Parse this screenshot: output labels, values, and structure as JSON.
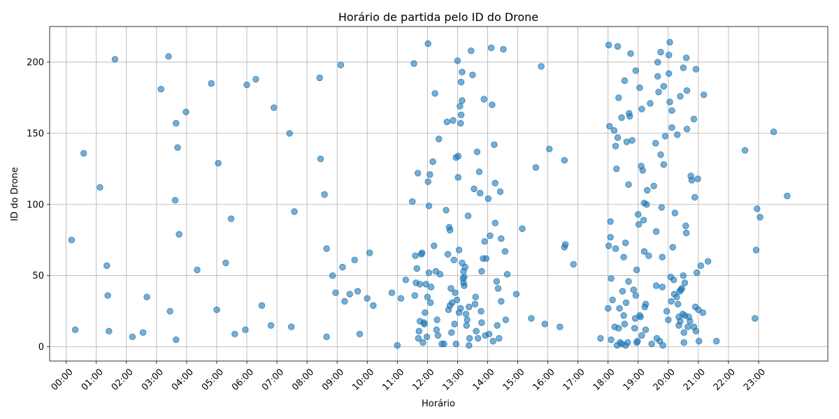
{
  "chart_data": {
    "type": "scatter",
    "title": "Horário de partida pelo ID do Drone",
    "xlabel": "Horário",
    "ylabel": "ID do Drone",
    "xlim": [
      -0.55,
      25.3
    ],
    "ylim": [
      -10,
      225
    ],
    "x_ticks": [
      0,
      1,
      2,
      3,
      4,
      5,
      6,
      7,
      8,
      9,
      10,
      11,
      12,
      13,
      14,
      15,
      16,
      17,
      18,
      19,
      20,
      21,
      22,
      23
    ],
    "x_tick_labels": [
      "00:00",
      "01:00",
      "02:00",
      "03:00",
      "04:00",
      "05:00",
      "06:00",
      "07:00",
      "08:00",
      "09:00",
      "10:00",
      "11:00",
      "12:00",
      "13:00",
      "14:00",
      "15:00",
      "16:00",
      "17:00",
      "18:00",
      "19:00",
      "20:00",
      "21:00",
      "22:00",
      "23:00"
    ],
    "y_ticks": [
      0,
      50,
      100,
      150,
      200
    ],
    "y_tick_labels": [
      "0",
      "50",
      "100",
      "150",
      "200"
    ],
    "grid": true,
    "marker_color": "#1f77b4",
    "marker_opacity": 0.6,
    "points": [
      [
        0.18,
        75
      ],
      [
        0.3,
        12
      ],
      [
        0.58,
        136
      ],
      [
        1.12,
        112
      ],
      [
        1.35,
        57
      ],
      [
        1.38,
        36
      ],
      [
        1.42,
        11
      ],
      [
        1.62,
        202
      ],
      [
        2.2,
        7
      ],
      [
        2.55,
        10
      ],
      [
        2.68,
        35
      ],
      [
        3.15,
        181
      ],
      [
        3.4,
        204
      ],
      [
        3.45,
        25
      ],
      [
        3.62,
        103
      ],
      [
        3.65,
        157
      ],
      [
        3.65,
        5
      ],
      [
        3.7,
        140
      ],
      [
        3.75,
        79
      ],
      [
        3.98,
        165
      ],
      [
        4.35,
        54
      ],
      [
        4.82,
        185
      ],
      [
        5.0,
        26
      ],
      [
        5.05,
        129
      ],
      [
        5.3,
        59
      ],
      [
        5.48,
        90
      ],
      [
        5.6,
        9
      ],
      [
        5.95,
        12
      ],
      [
        6.0,
        184
      ],
      [
        6.3,
        188
      ],
      [
        6.5,
        29
      ],
      [
        6.8,
        15
      ],
      [
        6.9,
        168
      ],
      [
        7.42,
        150
      ],
      [
        7.48,
        14
      ],
      [
        7.58,
        95
      ],
      [
        8.42,
        189
      ],
      [
        8.45,
        132
      ],
      [
        8.58,
        107
      ],
      [
        8.65,
        69
      ],
      [
        8.65,
        7
      ],
      [
        8.85,
        50
      ],
      [
        8.95,
        38
      ],
      [
        9.12,
        198
      ],
      [
        9.18,
        56
      ],
      [
        9.25,
        32
      ],
      [
        9.42,
        37
      ],
      [
        9.58,
        61
      ],
      [
        9.68,
        39
      ],
      [
        9.75,
        9
      ],
      [
        10.0,
        34
      ],
      [
        10.08,
        66
      ],
      [
        10.2,
        29
      ],
      [
        10.82,
        38
      ],
      [
        11.0,
        1
      ],
      [
        11.12,
        34
      ],
      [
        11.28,
        47
      ],
      [
        11.5,
        102
      ],
      [
        11.55,
        199
      ],
      [
        11.58,
        36
      ],
      [
        11.6,
        64
      ],
      [
        11.62,
        45
      ],
      [
        11.65,
        55
      ],
      [
        11.68,
        122
      ],
      [
        11.7,
        6
      ],
      [
        11.72,
        11
      ],
      [
        11.75,
        44
      ],
      [
        11.75,
        18
      ],
      [
        11.8,
        65
      ],
      [
        11.82,
        66
      ],
      [
        11.85,
        3
      ],
      [
        11.88,
        17
      ],
      [
        11.9,
        16
      ],
      [
        11.92,
        24
      ],
      [
        11.95,
        44
      ],
      [
        11.98,
        7
      ],
      [
        12.0,
        35
      ],
      [
        12.02,
        213
      ],
      [
        12.02,
        116
      ],
      [
        12.05,
        52
      ],
      [
        12.05,
        99
      ],
      [
        12.08,
        121
      ],
      [
        12.1,
        31
      ],
      [
        12.12,
        42
      ],
      [
        12.18,
        130
      ],
      [
        12.22,
        71
      ],
      [
        12.25,
        178
      ],
      [
        12.28,
        53
      ],
      [
        12.3,
        12
      ],
      [
        12.32,
        19
      ],
      [
        12.35,
        8
      ],
      [
        12.38,
        146
      ],
      [
        12.42,
        51
      ],
      [
        12.48,
        2
      ],
      [
        12.55,
        2
      ],
      [
        12.62,
        96
      ],
      [
        12.65,
        158
      ],
      [
        12.68,
        65
      ],
      [
        12.7,
        26
      ],
      [
        12.72,
        84
      ],
      [
        12.75,
        82
      ],
      [
        12.75,
        29
      ],
      [
        12.78,
        41
      ],
      [
        12.8,
        10
      ],
      [
        12.82,
        31
      ],
      [
        12.85,
        159
      ],
      [
        12.88,
        61
      ],
      [
        12.9,
        16
      ],
      [
        12.92,
        38
      ],
      [
        12.95,
        2
      ],
      [
        12.95,
        133
      ],
      [
        12.98,
        33
      ],
      [
        13.0,
        201
      ],
      [
        13.02,
        119
      ],
      [
        13.02,
        134
      ],
      [
        13.05,
        68
      ],
      [
        13.05,
        24
      ],
      [
        13.08,
        169
      ],
      [
        13.1,
        157
      ],
      [
        13.1,
        27
      ],
      [
        13.12,
        186
      ],
      [
        13.12,
        163
      ],
      [
        13.15,
        193
      ],
      [
        13.15,
        173
      ],
      [
        13.15,
        59
      ],
      [
        13.18,
        48
      ],
      [
        13.2,
        53
      ],
      [
        13.2,
        45
      ],
      [
        13.22,
        49
      ],
      [
        13.22,
        43
      ],
      [
        13.25,
        56
      ],
      [
        13.28,
        23
      ],
      [
        13.3,
        15
      ],
      [
        13.32,
        19
      ],
      [
        13.35,
        92
      ],
      [
        13.38,
        1
      ],
      [
        13.38,
        28
      ],
      [
        13.4,
        6
      ],
      [
        13.45,
        208
      ],
      [
        13.5,
        191
      ],
      [
        13.55,
        111
      ],
      [
        13.58,
        30
      ],
      [
        13.6,
        35
      ],
      [
        13.62,
        11
      ],
      [
        13.65,
        137
      ],
      [
        13.68,
        6
      ],
      [
        13.72,
        123
      ],
      [
        13.75,
        108
      ],
      [
        13.78,
        25
      ],
      [
        13.8,
        53
      ],
      [
        13.8,
        17
      ],
      [
        13.85,
        62
      ],
      [
        13.88,
        174
      ],
      [
        13.9,
        74
      ],
      [
        13.92,
        8
      ],
      [
        13.95,
        62
      ],
      [
        14.02,
        104
      ],
      [
        14.05,
        9
      ],
      [
        14.08,
        78
      ],
      [
        14.12,
        210
      ],
      [
        14.15,
        170
      ],
      [
        14.18,
        4
      ],
      [
        14.22,
        142
      ],
      [
        14.25,
        115
      ],
      [
        14.25,
        87
      ],
      [
        14.3,
        46
      ],
      [
        14.32,
        15
      ],
      [
        14.35,
        41
      ],
      [
        14.38,
        6
      ],
      [
        14.42,
        109
      ],
      [
        14.45,
        76
      ],
      [
        14.45,
        32
      ],
      [
        14.52,
        209
      ],
      [
        14.58,
        67
      ],
      [
        14.6,
        19
      ],
      [
        14.65,
        51
      ],
      [
        14.95,
        37
      ],
      [
        15.15,
        83
      ],
      [
        15.45,
        20
      ],
      [
        15.6,
        126
      ],
      [
        15.78,
        197
      ],
      [
        15.9,
        16
      ],
      [
        16.05,
        139
      ],
      [
        16.4,
        14
      ],
      [
        16.55,
        131
      ],
      [
        16.55,
        70
      ],
      [
        16.58,
        72
      ],
      [
        16.85,
        58
      ],
      [
        17.75,
        6
      ],
      [
        18.0,
        27
      ],
      [
        18.02,
        71
      ],
      [
        18.02,
        212
      ],
      [
        18.05,
        155
      ],
      [
        18.08,
        88
      ],
      [
        18.08,
        77
      ],
      [
        18.1,
        48
      ],
      [
        18.1,
        5
      ],
      [
        18.15,
        33
      ],
      [
        18.2,
        152
      ],
      [
        18.22,
        14
      ],
      [
        18.25,
        141
      ],
      [
        18.25,
        69
      ],
      [
        18.28,
        125
      ],
      [
        18.3,
        1
      ],
      [
        18.32,
        211
      ],
      [
        18.32,
        147
      ],
      [
        18.35,
        175
      ],
      [
        18.35,
        13
      ],
      [
        18.38,
        27
      ],
      [
        18.4,
        3
      ],
      [
        18.45,
        2
      ],
      [
        18.45,
        161
      ],
      [
        18.48,
        39
      ],
      [
        18.52,
        63
      ],
      [
        18.52,
        22
      ],
      [
        18.55,
        16
      ],
      [
        18.55,
        187
      ],
      [
        18.58,
        73
      ],
      [
        18.58,
        1
      ],
      [
        18.6,
        31
      ],
      [
        18.62,
        144
      ],
      [
        18.65,
        3
      ],
      [
        18.68,
        46
      ],
      [
        18.68,
        114
      ],
      [
        18.7,
        164
      ],
      [
        18.72,
        162
      ],
      [
        18.75,
        206
      ],
      [
        18.8,
        145
      ],
      [
        18.85,
        40
      ],
      [
        18.88,
        13
      ],
      [
        18.9,
        20
      ],
      [
        18.92,
        194
      ],
      [
        18.92,
        36
      ],
      [
        18.95,
        3
      ],
      [
        18.95,
        54
      ],
      [
        18.98,
        4
      ],
      [
        19.0,
        93
      ],
      [
        19.02,
        86
      ],
      [
        19.05,
        182
      ],
      [
        19.05,
        22
      ],
      [
        19.08,
        21
      ],
      [
        19.1,
        127
      ],
      [
        19.12,
        167
      ],
      [
        19.12,
        8
      ],
      [
        19.15,
        124
      ],
      [
        19.18,
        89
      ],
      [
        19.2,
        101
      ],
      [
        19.2,
        67
      ],
      [
        19.22,
        28
      ],
      [
        19.25,
        30
      ],
      [
        19.25,
        12
      ],
      [
        19.28,
        100
      ],
      [
        19.3,
        110
      ],
      [
        19.35,
        64
      ],
      [
        19.4,
        171
      ],
      [
        19.45,
        2
      ],
      [
        19.52,
        113
      ],
      [
        19.58,
        143
      ],
      [
        19.6,
        81
      ],
      [
        19.6,
        43
      ],
      [
        19.62,
        6
      ],
      [
        19.65,
        200
      ],
      [
        19.65,
        190
      ],
      [
        19.68,
        179
      ],
      [
        19.72,
        4
      ],
      [
        19.75,
        207
      ],
      [
        19.75,
        135
      ],
      [
        19.78,
        98
      ],
      [
        19.8,
        63
      ],
      [
        19.8,
        42
      ],
      [
        19.82,
        1
      ],
      [
        19.85,
        183
      ],
      [
        19.85,
        128
      ],
      [
        19.9,
        148
      ],
      [
        19.95,
        25
      ],
      [
        20.0,
        19
      ],
      [
        20.02,
        205
      ],
      [
        20.02,
        192
      ],
      [
        20.05,
        214
      ],
      [
        20.05,
        172
      ],
      [
        20.08,
        49
      ],
      [
        20.1,
        32
      ],
      [
        20.12,
        166
      ],
      [
        20.12,
        154
      ],
      [
        20.15,
        70
      ],
      [
        20.18,
        47
      ],
      [
        20.2,
        37
      ],
      [
        20.22,
        94
      ],
      [
        20.28,
        35
      ],
      [
        20.3,
        149
      ],
      [
        20.32,
        30
      ],
      [
        20.35,
        21
      ],
      [
        20.35,
        15
      ],
      [
        20.38,
        39
      ],
      [
        20.4,
        176
      ],
      [
        20.4,
        18
      ],
      [
        20.42,
        40
      ],
      [
        20.45,
        41
      ],
      [
        20.48,
        23
      ],
      [
        20.5,
        50
      ],
      [
        20.5,
        196
      ],
      [
        20.52,
        10
      ],
      [
        20.52,
        3
      ],
      [
        20.55,
        45
      ],
      [
        20.55,
        22
      ],
      [
        20.58,
        85
      ],
      [
        20.6,
        80
      ],
      [
        20.6,
        203
      ],
      [
        20.62,
        180
      ],
      [
        20.62,
        153
      ],
      [
        20.65,
        14
      ],
      [
        20.68,
        21
      ],
      [
        20.72,
        18
      ],
      [
        20.75,
        120
      ],
      [
        20.78,
        117
      ],
      [
        20.85,
        160
      ],
      [
        20.85,
        14
      ],
      [
        20.88,
        105
      ],
      [
        20.9,
        28
      ],
      [
        20.92,
        195
      ],
      [
        20.92,
        11
      ],
      [
        20.95,
        52
      ],
      [
        20.98,
        118
      ],
      [
        21.0,
        26
      ],
      [
        21.02,
        4
      ],
      [
        21.08,
        57
      ],
      [
        21.15,
        24
      ],
      [
        21.18,
        177
      ],
      [
        21.32,
        60
      ],
      [
        21.6,
        4
      ],
      [
        22.55,
        138
      ],
      [
        22.88,
        20
      ],
      [
        22.92,
        68
      ],
      [
        22.95,
        97
      ],
      [
        23.05,
        91
      ],
      [
        23.5,
        151
      ],
      [
        23.95,
        106
      ]
    ]
  }
}
